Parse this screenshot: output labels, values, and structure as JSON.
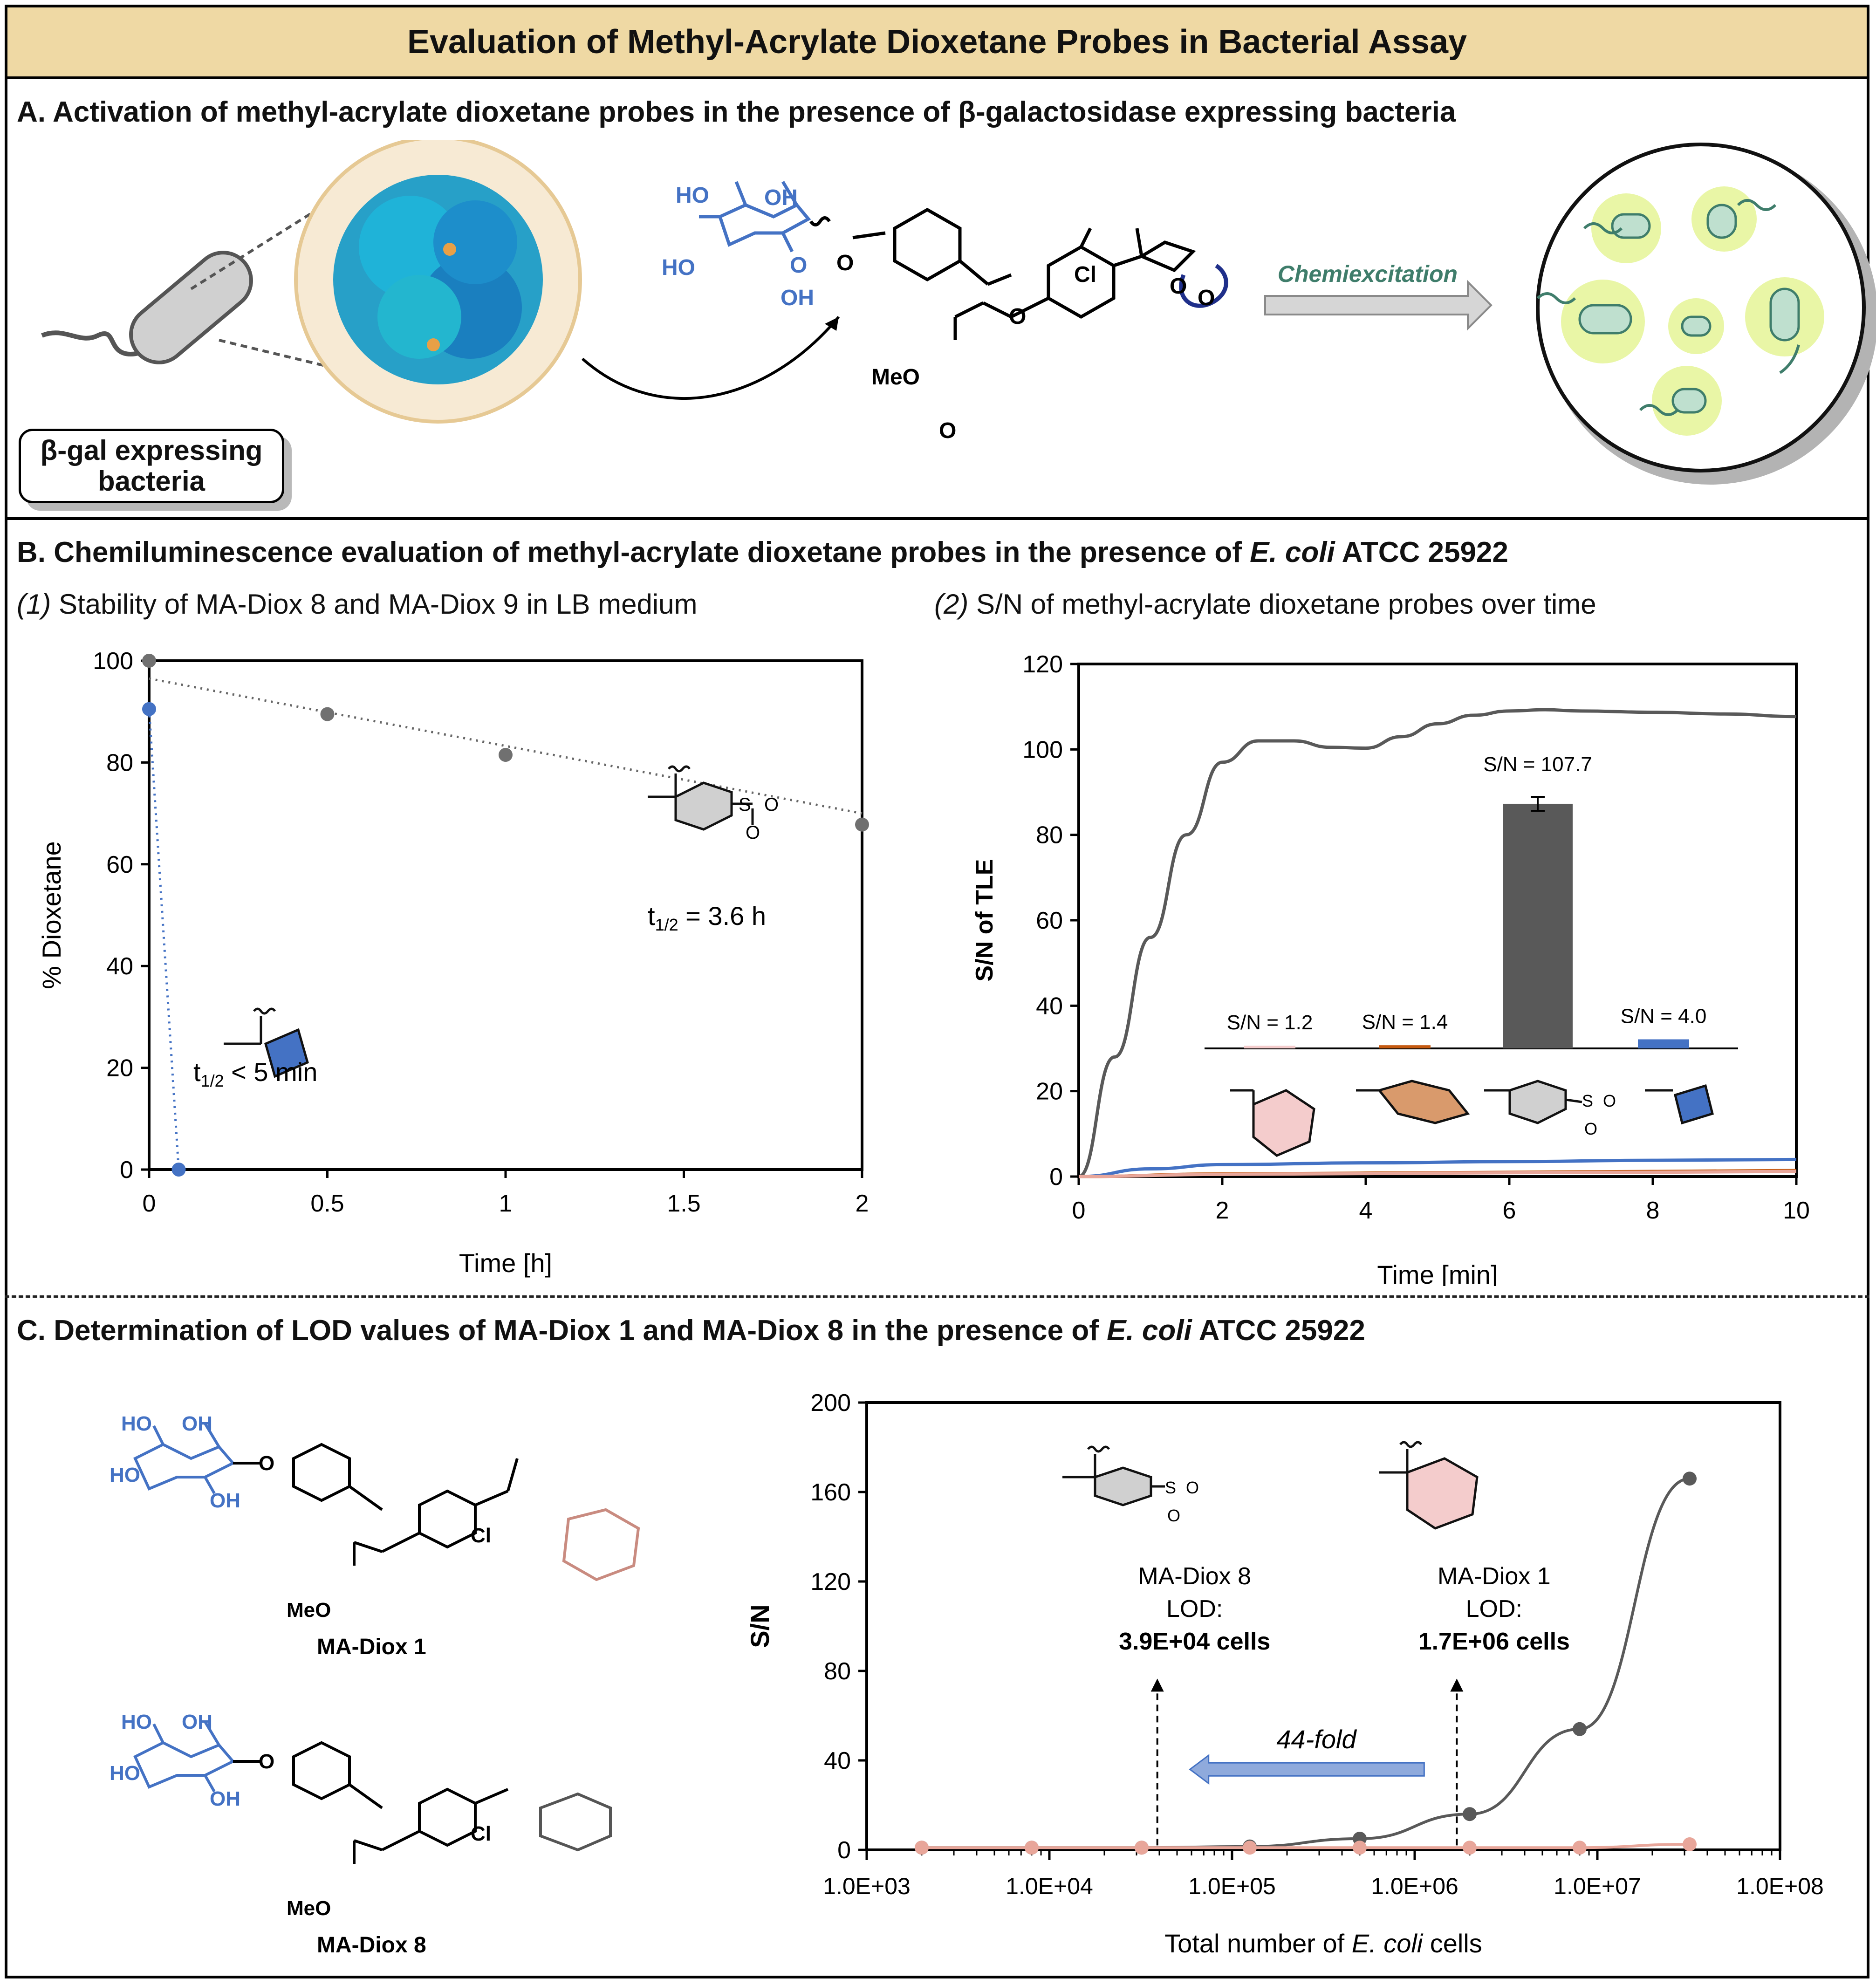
{
  "figure_title": "Evaluation of Methyl-Acrylate Dioxetane Probes in Bacterial Assay",
  "panel_a": {
    "letter": "A",
    "title": "Activation of methyl-acrylate dioxetane probes in the presence of β-galactosidase expressing bacteria",
    "bacteria_label_line1": "β-gal expressing",
    "bacteria_label_line2": "bacteria",
    "arrow_label": "Chemiexcitation",
    "structure_labels": {
      "ho1": "HO",
      "oh1": "OH",
      "ho2": "HO",
      "oh2": "OH",
      "o_link": "O",
      "o_ring": "O",
      "o_ether": "O",
      "cl": "Cl",
      "o_a": "O",
      "o_b": "O",
      "meo": "MeO",
      "o_carbonyl": "O"
    }
  },
  "panel_b": {
    "letter": "B",
    "title_pre": "Chemiluminescence evaluation of methyl-acrylate dioxetane probes in the presence of ",
    "title_italic": "E. coli",
    "title_post": " ATCC 25922",
    "sub1_num": "(1)",
    "sub1_text": " Stability of MA-Diox 8 and MA-Diox 9 in LB medium",
    "sub2_num": "(2)",
    "sub2_text": " S/N of methyl-acrylate dioxetane probes over time"
  },
  "panel_c": {
    "letter": "C",
    "title_pre": "Determination of LOD values of MA-Diox 1 and MA-Diox 8 in the presence of ",
    "title_italic": "E. coli",
    "title_post": " ATCC 25922",
    "compound1_name": "MA-Diox 1",
    "compound2_name": "MA-Diox 8",
    "struct_labels": {
      "ho": "HO",
      "oh": "OH",
      "o": "O",
      "cl": "Cl",
      "meo": "MeO"
    }
  },
  "chart_data": [
    {
      "type": "scatter",
      "xlabel": "Time [h]",
      "ylabel": "% Dioxetane",
      "xlim": [
        0,
        2
      ],
      "ylim": [
        0,
        100
      ],
      "xticks": [
        "0",
        "0.5",
        "1",
        "1.5",
        "2"
      ],
      "yticks": [
        "0",
        "20",
        "40",
        "60",
        "80",
        "100"
      ],
      "series": [
        {
          "color": "#707070",
          "x": [
            0,
            0.5,
            1,
            2
          ],
          "y": [
            100,
            89.5,
            81.5,
            67.8
          ]
        },
        {
          "color": "#4472c4",
          "x": [
            0,
            0.083
          ],
          "y": [
            90.5,
            0
          ]
        }
      ],
      "annotations": {
        "sulfone_half_life": "t1/2 = 3.6 h",
        "cyclobutyl_half_life": "t1/2 < 5 min",
        "half_life_symbol": "t",
        "half_life_sub": "1/2",
        "sulfone_value": "= 3.6 h",
        "cyclobutyl_value": "< 5 min",
        "s": "S",
        "o": "O"
      }
    },
    {
      "type": "line",
      "xlabel": "Time [min]",
      "ylabel": "S/N of TLE",
      "xlim": [
        0,
        10
      ],
      "ylim": [
        0,
        120
      ],
      "xticks": [
        "0",
        "2",
        "4",
        "6",
        "8",
        "10"
      ],
      "yticks": [
        "0",
        "20",
        "40",
        "60",
        "80",
        "100",
        "120"
      ],
      "series": [
        {
          "color": "#595959",
          "x": [
            0,
            0.5,
            1,
            1.5,
            2,
            2.5,
            3,
            3.5,
            4,
            4.5,
            5,
            5.5,
            6,
            6.5,
            7,
            8,
            9,
            10
          ],
          "y": [
            0,
            28,
            56,
            80,
            97,
            102,
            102,
            100.5,
            100.3,
            103,
            106,
            108,
            109,
            109.3,
            109,
            108.7,
            108.3,
            107.7
          ]
        },
        {
          "color": "#4472c4",
          "x": [
            0,
            1,
            2,
            4,
            6,
            8,
            10
          ],
          "y": [
            0,
            1.8,
            2.8,
            3.2,
            3.5,
            3.8,
            4.0
          ]
        },
        {
          "color": "#c55a11",
          "x": [
            0,
            2,
            4,
            6,
            8,
            10
          ],
          "y": [
            0,
            0.6,
            0.8,
            1.0,
            1.2,
            1.4
          ]
        },
        {
          "color": "#e8a69a",
          "x": [
            0,
            2,
            4,
            6,
            8,
            10
          ],
          "y": [
            0,
            0.5,
            0.7,
            0.9,
            1.0,
            1.2
          ]
        }
      ],
      "inset_bars": {
        "labels": [
          "S/N = 1.2",
          "S/N = 1.4",
          "S/N = 107.7",
          "S/N = 4.0"
        ],
        "values": [
          1.2,
          1.4,
          107.7,
          4.0
        ],
        "colors": [
          "#f4cccc",
          "#c55a11",
          "#595959",
          "#4472c4"
        ],
        "s": "S",
        "o": "O"
      }
    },
    {
      "type": "scatter",
      "xscale": "log",
      "xlabel_pre": "Total number of ",
      "xlabel_italic": "E. coli",
      "xlabel_post": " cells",
      "ylabel": "S/N",
      "xlim": [
        1000,
        100000000
      ],
      "ylim": [
        0,
        200
      ],
      "xticks": [
        "1.0E+03",
        "1.0E+04",
        "1.0E+05",
        "1.0E+06",
        "1.0E+07",
        "1.0E+08"
      ],
      "yticks": [
        "0",
        "40",
        "80",
        "120",
        "160",
        "200"
      ],
      "series": [
        {
          "color": "#595959",
          "x": [
            2000,
            8000,
            32000,
            125000,
            500000,
            2000000,
            8000000,
            32000000
          ],
          "y": [
            1,
            1,
            1,
            1.5,
            5,
            16,
            54,
            166
          ]
        },
        {
          "color": "#e8a69a",
          "x": [
            2000,
            8000,
            32000,
            125000,
            500000,
            2000000,
            8000000,
            32000000
          ],
          "y": [
            1,
            1,
            1,
            1,
            1,
            1,
            1,
            2.5
          ]
        }
      ],
      "lod": [
        {
          "x": 39000,
          "name": "MA-Diox 8",
          "lod_label": "LOD:",
          "value": "3.9E+04 cells"
        },
        {
          "x": 1700000,
          "name": "MA-Diox 1",
          "lod_label": "LOD:",
          "value": "1.7E+06 cells"
        }
      ],
      "fold_label": "44-fold",
      "s": "S",
      "o": "O"
    }
  ]
}
